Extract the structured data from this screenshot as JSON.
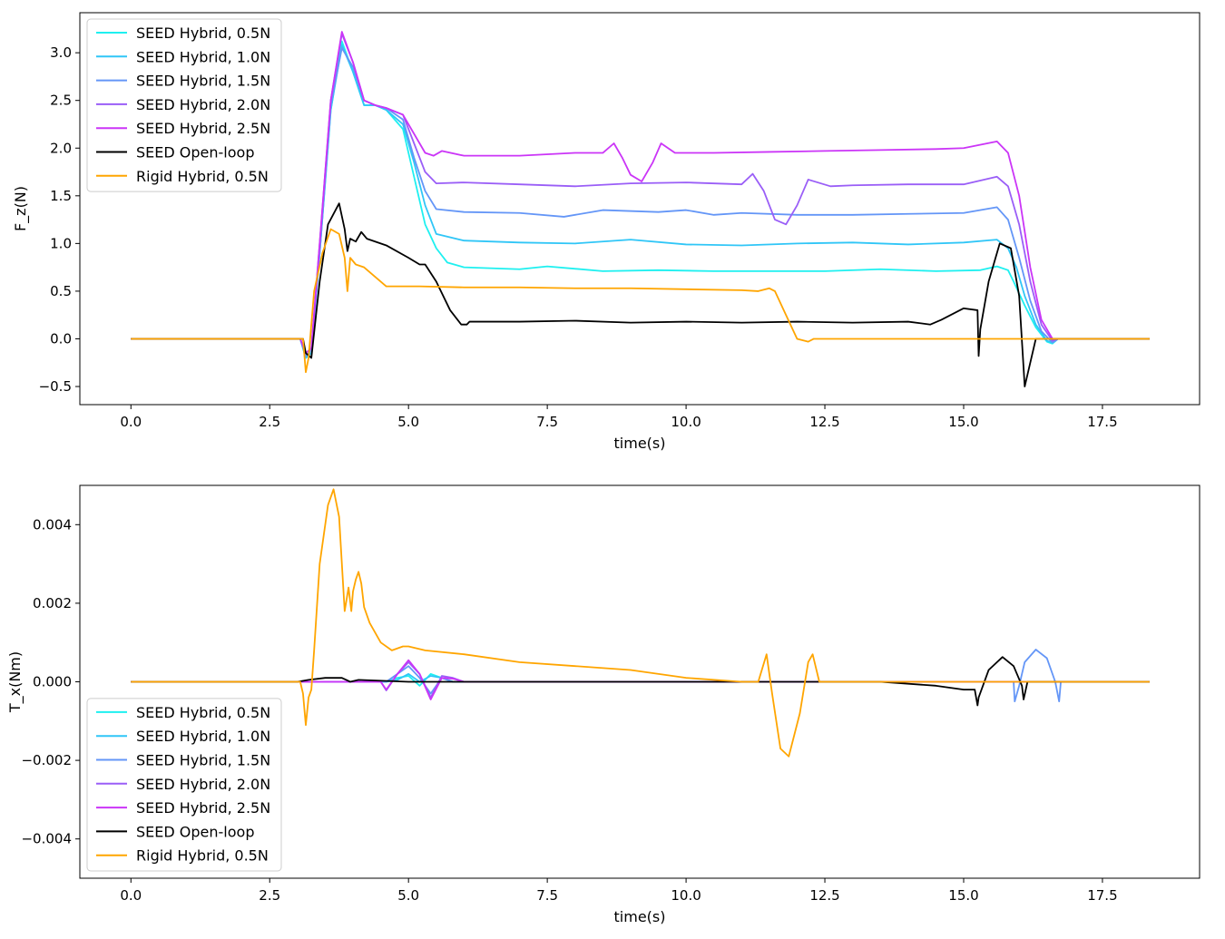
{
  "chart_data": [
    {
      "type": "line",
      "xlabel": "time(s)",
      "ylabel": "F_z(N)",
      "xlim": [
        -0.92,
        19.25
      ],
      "ylim": [
        -0.69,
        3.42
      ],
      "xticks": [
        0.0,
        2.5,
        5.0,
        7.5,
        10.0,
        12.5,
        15.0,
        17.5
      ],
      "xtick_labels": [
        "0.0",
        "2.5",
        "5.0",
        "7.5",
        "10.0",
        "12.5",
        "15.0",
        "17.5"
      ],
      "yticks": [
        -0.5,
        0.0,
        0.5,
        1.0,
        1.5,
        2.0,
        2.5,
        3.0
      ],
      "ytick_labels": [
        "−0.5",
        "0.0",
        "0.5",
        "1.0",
        "1.5",
        "2.0",
        "2.5",
        "3.0"
      ],
      "legend_position": "upper-left",
      "grid": false,
      "series": [
        {
          "name": "SEED Hybrid, 0.5N",
          "color": "#1ef0f0",
          "x": [
            0,
            3.05,
            3.15,
            3.25,
            3.4,
            3.6,
            3.8,
            4.0,
            4.2,
            4.4,
            4.6,
            4.9,
            5.1,
            5.3,
            5.5,
            5.7,
            6.0,
            7.0,
            7.5,
            8.5,
            9.5,
            10.5,
            11.5,
            12.5,
            13.5,
            14.5,
            15.3,
            15.6,
            15.8,
            15.9,
            16.1,
            16.3,
            16.5,
            16.6,
            16.7,
            17,
            18.35
          ],
          "y": [
            0,
            0,
            -0.2,
            -0.15,
            0.9,
            2.4,
            3.12,
            2.8,
            2.45,
            2.45,
            2.4,
            2.2,
            1.7,
            1.2,
            0.95,
            0.8,
            0.75,
            0.73,
            0.76,
            0.71,
            0.72,
            0.71,
            0.71,
            0.71,
            0.73,
            0.71,
            0.72,
            0.76,
            0.72,
            0.6,
            0.35,
            0.12,
            -0.03,
            -0.05,
            0.0,
            0.0,
            0.0
          ]
        },
        {
          "name": "SEED Hybrid, 1.0N",
          "color": "#30c6f7",
          "x": [
            0,
            3.05,
            3.15,
            3.25,
            3.4,
            3.6,
            3.8,
            4.0,
            4.2,
            4.4,
            4.6,
            4.9,
            5.1,
            5.3,
            5.5,
            6.0,
            7.0,
            8.0,
            9.0,
            10.0,
            11.0,
            12.0,
            13.0,
            14.0,
            15.0,
            15.6,
            15.8,
            15.95,
            16.1,
            16.3,
            16.5,
            16.6,
            16.7,
            17,
            18.35
          ],
          "y": [
            0,
            0,
            -0.2,
            -0.15,
            0.9,
            2.4,
            3.08,
            2.8,
            2.45,
            2.45,
            2.4,
            2.25,
            1.85,
            1.4,
            1.1,
            1.03,
            1.01,
            1.0,
            1.04,
            0.99,
            0.98,
            1.0,
            1.01,
            0.99,
            1.01,
            1.04,
            0.95,
            0.75,
            0.45,
            0.15,
            -0.02,
            -0.04,
            0.0,
            0.0,
            0.0
          ]
        },
        {
          "name": "SEED Hybrid, 1.5N",
          "color": "#6496f7",
          "x": [
            0,
            3.05,
            3.15,
            3.25,
            3.4,
            3.6,
            3.8,
            4.0,
            4.2,
            4.4,
            4.6,
            4.9,
            5.1,
            5.3,
            5.5,
            6.0,
            7.0,
            7.8,
            8.5,
            9.5,
            10.0,
            10.5,
            11.0,
            12.0,
            13.0,
            14.0,
            15.0,
            15.6,
            15.8,
            16.0,
            16.2,
            16.4,
            16.6,
            16.7,
            17,
            18.35
          ],
          "y": [
            0,
            0,
            -0.18,
            -0.12,
            0.9,
            2.45,
            3.05,
            2.85,
            2.5,
            2.45,
            2.42,
            2.3,
            1.9,
            1.55,
            1.36,
            1.33,
            1.32,
            1.28,
            1.35,
            1.33,
            1.35,
            1.3,
            1.32,
            1.3,
            1.3,
            1.31,
            1.32,
            1.38,
            1.25,
            0.85,
            0.4,
            0.08,
            -0.04,
            0.0,
            0.0,
            0.0
          ]
        },
        {
          "name": "SEED Hybrid, 2.0N",
          "color": "#9a5ef7",
          "x": [
            0,
            3.05,
            3.15,
            3.25,
            3.4,
            3.6,
            3.8,
            4.0,
            4.2,
            4.4,
            4.6,
            4.9,
            5.1,
            5.3,
            5.5,
            6.0,
            7.0,
            8.0,
            9.0,
            10.0,
            11.0,
            11.2,
            11.4,
            11.6,
            11.8,
            12.0,
            12.2,
            12.6,
            13.0,
            14.0,
            15.0,
            15.6,
            15.8,
            16.0,
            16.2,
            16.4,
            16.6,
            16.7,
            17,
            18.35
          ],
          "y": [
            0,
            0,
            -0.15,
            -0.1,
            1.0,
            2.5,
            3.2,
            2.9,
            2.5,
            2.45,
            2.42,
            2.35,
            2.05,
            1.75,
            1.63,
            1.64,
            1.62,
            1.6,
            1.63,
            1.64,
            1.62,
            1.73,
            1.55,
            1.25,
            1.2,
            1.4,
            1.67,
            1.6,
            1.61,
            1.62,
            1.62,
            1.7,
            1.6,
            1.2,
            0.6,
            0.15,
            -0.02,
            0.0,
            0.0,
            0.0
          ]
        },
        {
          "name": "SEED Hybrid, 2.5N",
          "color": "#cb35f7",
          "x": [
            0,
            3.05,
            3.15,
            3.25,
            3.4,
            3.6,
            3.8,
            4.0,
            4.2,
            4.4,
            4.6,
            4.9,
            5.1,
            5.3,
            5.45,
            5.6,
            6.0,
            7.0,
            8.0,
            8.5,
            8.7,
            8.85,
            9.0,
            9.2,
            9.4,
            9.55,
            9.8,
            10.5,
            11.5,
            12.5,
            13.5,
            14.5,
            15.0,
            15.6,
            15.8,
            16.0,
            16.2,
            16.4,
            16.6,
            16.7,
            17,
            18.35
          ],
          "y": [
            0,
            0,
            -0.15,
            -0.1,
            1.0,
            2.5,
            3.22,
            2.9,
            2.5,
            2.45,
            2.42,
            2.35,
            2.15,
            1.95,
            1.92,
            1.97,
            1.92,
            1.92,
            1.95,
            1.95,
            2.05,
            1.9,
            1.72,
            1.65,
            1.85,
            2.05,
            1.95,
            1.95,
            1.96,
            1.97,
            1.98,
            1.99,
            2.0,
            2.07,
            1.95,
            1.5,
            0.75,
            0.2,
            0.0,
            0.0,
            0.0,
            0.0
          ]
        },
        {
          "name": "SEED Open-loop",
          "color": "#000000",
          "x": [
            0,
            3.1,
            3.15,
            3.25,
            3.4,
            3.55,
            3.75,
            3.85,
            3.9,
            3.95,
            4.05,
            4.15,
            4.25,
            4.6,
            5.0,
            5.2,
            5.3,
            5.5,
            5.75,
            5.95,
            6.05,
            6.1,
            7.0,
            8.0,
            9.0,
            10.0,
            11.0,
            12.0,
            13.0,
            14.0,
            14.4,
            14.6,
            15.0,
            15.25,
            15.27,
            15.3,
            15.45,
            15.65,
            15.85,
            16.0,
            16.1,
            16.3,
            16.6,
            17,
            18.35
          ],
          "y": [
            0,
            0,
            -0.15,
            -0.2,
            0.6,
            1.2,
            1.42,
            1.15,
            0.92,
            1.05,
            1.02,
            1.12,
            1.05,
            0.98,
            0.85,
            0.78,
            0.78,
            0.6,
            0.3,
            0.15,
            0.15,
            0.18,
            0.18,
            0.19,
            0.17,
            0.18,
            0.17,
            0.18,
            0.17,
            0.18,
            0.15,
            0.2,
            0.32,
            0.3,
            -0.18,
            0.1,
            0.6,
            1.0,
            0.95,
            0.45,
            -0.5,
            0.0,
            0.0,
            0.0,
            0.0
          ]
        },
        {
          "name": "Rigid Hybrid, 0.5N",
          "color": "#ffa500",
          "x": [
            0,
            3.1,
            3.15,
            3.2,
            3.3,
            3.45,
            3.6,
            3.75,
            3.85,
            3.9,
            3.95,
            4.05,
            4.2,
            4.4,
            4.6,
            4.9,
            5.2,
            6.0,
            7.0,
            8.0,
            9.0,
            10.0,
            11.0,
            11.3,
            11.5,
            11.6,
            11.8,
            12.0,
            12.2,
            12.3,
            13,
            14,
            15,
            16,
            17,
            18.35
          ],
          "y": [
            0,
            0,
            -0.35,
            -0.2,
            0.5,
            0.9,
            1.15,
            1.1,
            0.85,
            0.5,
            0.85,
            0.78,
            0.75,
            0.65,
            0.55,
            0.55,
            0.55,
            0.54,
            0.54,
            0.53,
            0.53,
            0.52,
            0.51,
            0.5,
            0.53,
            0.5,
            0.25,
            0.0,
            -0.03,
            0.0,
            0.0,
            0.0,
            0.0,
            0.0,
            0.0,
            0.0
          ]
        }
      ]
    },
    {
      "type": "line",
      "xlabel": "time(s)",
      "ylabel": "T_x(Nm)",
      "xlim": [
        -0.92,
        19.25
      ],
      "ylim": [
        -0.005,
        0.005
      ],
      "xticks": [
        0.0,
        2.5,
        5.0,
        7.5,
        10.0,
        12.5,
        15.0,
        17.5
      ],
      "xtick_labels": [
        "0.0",
        "2.5",
        "5.0",
        "7.5",
        "10.0",
        "12.5",
        "15.0",
        "17.5"
      ],
      "yticks": [
        -0.004,
        -0.002,
        0.0,
        0.002,
        0.004
      ],
      "ytick_labels": [
        "−0.004",
        "−0.002",
        "0.000",
        "0.002",
        "0.004"
      ],
      "legend_position": "lower-left",
      "grid": false,
      "series": [
        {
          "name": "SEED Hybrid, 0.5N",
          "color": "#1ef0f0",
          "x": [
            0,
            4.6,
            4.8,
            5.0,
            5.2,
            5.4,
            5.6,
            5.8,
            6.0,
            18.35
          ],
          "y": [
            0,
            0,
            0.0001,
            0.00015,
            -0.0001,
            0.0002,
            0.0001,
            0.0,
            0.0,
            0.0
          ]
        },
        {
          "name": "SEED Hybrid, 1.0N",
          "color": "#30c6f7",
          "x": [
            0,
            4.6,
            4.8,
            5.0,
            5.2,
            5.4,
            5.6,
            5.8,
            6.0,
            18.35
          ],
          "y": [
            0,
            0,
            5e-05,
            0.0002,
            0.0,
            0.00015,
            0.0001,
            0.0,
            0.0,
            0.0
          ]
        },
        {
          "name": "SEED Hybrid, 1.5N",
          "color": "#6496f7",
          "x": [
            0,
            4.6,
            4.8,
            5.0,
            5.2,
            5.4,
            5.6,
            5.8,
            15.9,
            15.92,
            16.0,
            16.1,
            16.3,
            16.5,
            16.65,
            16.72,
            16.75,
            18.35
          ],
          "y": [
            0,
            0,
            0.0002,
            0.0004,
            0.0001,
            -0.0003,
            0.0001,
            0.0,
            0.0,
            -0.0005,
            -0.0001,
            0.0005,
            0.00082,
            0.0006,
            0.0,
            -0.0005,
            0.0,
            0.0
          ]
        },
        {
          "name": "SEED Hybrid, 2.0N",
          "color": "#9a5ef7",
          "x": [
            0,
            4.5,
            4.6,
            4.8,
            5.0,
            5.2,
            5.4,
            5.6,
            5.8,
            6.0,
            18.35
          ],
          "y": [
            0,
            0,
            -0.00022,
            0.0002,
            0.0005,
            0.0002,
            -0.0004,
            0.00015,
            0.0001,
            0.0,
            0.0
          ]
        },
        {
          "name": "SEED Hybrid, 2.5N",
          "color": "#cb35f7",
          "x": [
            0,
            4.5,
            4.6,
            4.8,
            5.0,
            5.2,
            5.4,
            5.6,
            5.8,
            6.0,
            18.35
          ],
          "y": [
            0,
            0,
            -0.0002,
            0.0002,
            0.00055,
            0.0002,
            -0.00045,
            0.0001,
            8e-05,
            0.0,
            0.0
          ]
        },
        {
          "name": "SEED Open-loop",
          "color": "#000000",
          "x": [
            0,
            3.0,
            3.2,
            3.5,
            3.8,
            3.95,
            4.1,
            5.0,
            6.0,
            8.0,
            10.0,
            12.0,
            13.5,
            14.5,
            15.0,
            15.2,
            15.25,
            15.27,
            15.45,
            15.7,
            15.9,
            16.05,
            16.08,
            16.15,
            18.35
          ],
          "y": [
            0,
            0,
            5e-05,
            0.0001,
            0.0001,
            0.0,
            5e-05,
            0.0,
            0.0,
            0.0,
            0.0,
            0.0,
            0.0,
            -0.0001,
            -0.0002,
            -0.0002,
            -0.0006,
            -0.0004,
            0.0003,
            0.00063,
            0.0004,
            -0.0001,
            -0.00045,
            0.0,
            0.0
          ]
        },
        {
          "name": "Rigid Hybrid, 0.5N",
          "color": "#ffa500",
          "x": [
            0,
            3.05,
            3.1,
            3.15,
            3.2,
            3.25,
            3.3,
            3.4,
            3.55,
            3.65,
            3.75,
            3.85,
            3.92,
            3.97,
            4.0,
            4.05,
            4.1,
            4.15,
            4.2,
            4.3,
            4.5,
            4.7,
            4.9,
            5.0,
            5.3,
            6.0,
            7.0,
            8.0,
            9.0,
            10.0,
            11.0,
            11.3,
            11.45,
            11.55,
            11.7,
            11.85,
            12.05,
            12.2,
            12.28,
            12.4,
            18.35
          ],
          "y": [
            0,
            0,
            -0.0003,
            -0.0011,
            -0.0004,
            -0.0002,
            0.0008,
            0.003,
            0.0045,
            0.0049,
            0.0042,
            0.0018,
            0.0024,
            0.0018,
            0.0023,
            0.0026,
            0.0028,
            0.0025,
            0.0019,
            0.0015,
            0.001,
            0.0008,
            0.0009,
            0.0009,
            0.0008,
            0.0007,
            0.0005,
            0.0004,
            0.0003,
            0.0001,
            0.0,
            0.0,
            0.0007,
            -0.0003,
            -0.0017,
            -0.0019,
            -0.0008,
            0.0005,
            0.0007,
            0.0,
            0.0
          ]
        }
      ]
    }
  ]
}
